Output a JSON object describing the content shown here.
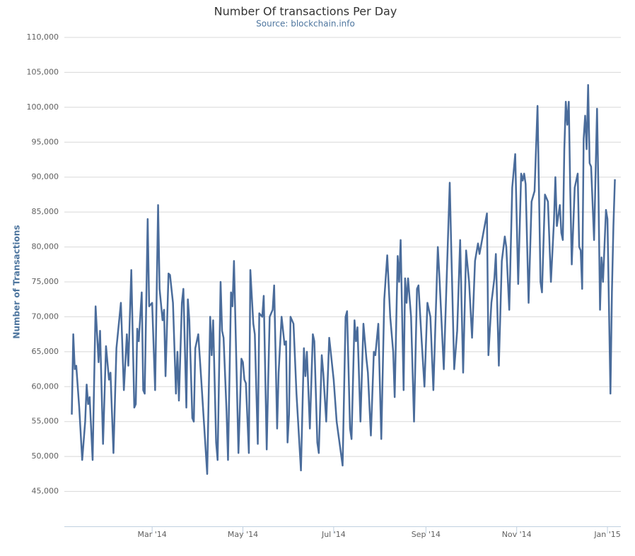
{
  "chart_data": {
    "type": "line",
    "title": "Number Of transactions Per Day",
    "subtitle": "Source: blockchain.info",
    "y_label": "Number of Transactions",
    "color": "#4a6c9b",
    "grid": true,
    "xlim": [
      0,
      374
    ],
    "xticks": [
      {
        "value": 59,
        "label": "Mar '14"
      },
      {
        "value": 120,
        "label": "May '14"
      },
      {
        "value": 181,
        "label": "Jul '14"
      },
      {
        "value": 243,
        "label": "Sep '14"
      },
      {
        "value": 304,
        "label": "Nov '14"
      },
      {
        "value": 365,
        "label": "Jan '15"
      }
    ],
    "ylim": [
      40000,
      110000
    ],
    "yticks": [
      {
        "value": 45000,
        "label": "45,000"
      },
      {
        "value": 50000,
        "label": "50,000"
      },
      {
        "value": 55000,
        "label": "55,000"
      },
      {
        "value": 60000,
        "label": "60,000"
      },
      {
        "value": 65000,
        "label": "65,000"
      },
      {
        "value": 70000,
        "label": "70,000"
      },
      {
        "value": 75000,
        "label": "75,000"
      },
      {
        "value": 80000,
        "label": "80,000"
      },
      {
        "value": 85000,
        "label": "85,000"
      },
      {
        "value": 90000,
        "label": "90,000"
      },
      {
        "value": 95000,
        "label": "95,000"
      },
      {
        "value": 100000,
        "label": "100,000"
      },
      {
        "value": 105000,
        "label": "105,000"
      },
      {
        "value": 110000,
        "label": "110,000"
      }
    ],
    "x": [
      5,
      6,
      7,
      8,
      10,
      12,
      14,
      15,
      16,
      17,
      19,
      21,
      23,
      24,
      26,
      28,
      30,
      31,
      33,
      35,
      38,
      40,
      42,
      43,
      45,
      47,
      48,
      49,
      50,
      52,
      53,
      54,
      56,
      57,
      59,
      61,
      63,
      64,
      66,
      67,
      68,
      70,
      71,
      73,
      75,
      76,
      77,
      79,
      80,
      82,
      83,
      84,
      86,
      87,
      88,
      90,
      92,
      96,
      98,
      99,
      100,
      102,
      103,
      105,
      106,
      107,
      109,
      110,
      112,
      113,
      114,
      115,
      117,
      119,
      120,
      121,
      122,
      124,
      125,
      127,
      128,
      130,
      131,
      133,
      134,
      136,
      137,
      138,
      140,
      141,
      143,
      144,
      146,
      148,
      149,
      150,
      151,
      152,
      154,
      156,
      159,
      161,
      162,
      163,
      165,
      167,
      168,
      170,
      171,
      173,
      174,
      176,
      178,
      179,
      181,
      183,
      187,
      189,
      190,
      192,
      193,
      195,
      196,
      197,
      199,
      201,
      203,
      204,
      206,
      208,
      209,
      211,
      213,
      215,
      217,
      219,
      221,
      222,
      224,
      225,
      226,
      228,
      229,
      230,
      231,
      233,
      235,
      237,
      238,
      240,
      242,
      244,
      246,
      248,
      251,
      252,
      255,
      259,
      260,
      262,
      264,
      266,
      268,
      270,
      272,
      274,
      276,
      278,
      279,
      284,
      285,
      287,
      289,
      290,
      292,
      294,
      296,
      297,
      299,
      301,
      303,
      305,
      307,
      308,
      309,
      310,
      312,
      314,
      316,
      318,
      320,
      321,
      323,
      324,
      325,
      327,
      329,
      330,
      331,
      333,
      334,
      335,
      336,
      337,
      338,
      339,
      340,
      341,
      343,
      345,
      346,
      347,
      348,
      349,
      350,
      351,
      352,
      353,
      354,
      356,
      358,
      359,
      360,
      361,
      362,
      364,
      365,
      367,
      368,
      369,
      370
    ],
    "values": [
      56000,
      67500,
      62500,
      63000,
      57000,
      49500,
      55000,
      60300,
      57500,
      58500,
      49500,
      71500,
      63500,
      68000,
      51800,
      65800,
      61000,
      62000,
      50500,
      65500,
      72000,
      59500,
      67500,
      63000,
      76700,
      57000,
      57500,
      68300,
      66500,
      73500,
      59500,
      59000,
      84000,
      71500,
      72000,
      59500,
      86000,
      74000,
      69500,
      71000,
      61500,
      76200,
      76000,
      72000,
      59000,
      65000,
      58000,
      72000,
      74000,
      57000,
      72500,
      69500,
      55500,
      55000,
      65500,
      67500,
      61000,
      47500,
      70000,
      64500,
      69500,
      52000,
      49500,
      75000,
      68000,
      67000,
      56500,
      49500,
      73500,
      71500,
      78000,
      69000,
      50500,
      64000,
      63500,
      61000,
      60500,
      50500,
      76700,
      69000,
      67500,
      51800,
      70500,
      70000,
      73000,
      51000,
      61000,
      70000,
      71000,
      74500,
      54000,
      62000,
      70000,
      66000,
      66500,
      52000,
      56000,
      70000,
      69000,
      59000,
      48000,
      65500,
      61500,
      65000,
      54000,
      67500,
      66500,
      52000,
      50500,
      64500,
      62000,
      55000,
      67000,
      65000,
      61000,
      55000,
      48700,
      70000,
      70800,
      54000,
      52500,
      69500,
      66500,
      68500,
      55000,
      69000,
      64000,
      62000,
      53000,
      65000,
      64500,
      69000,
      52500,
      72500,
      78800,
      70000,
      65000,
      58500,
      78700,
      75000,
      81000,
      59500,
      75500,
      72000,
      75500,
      70000,
      55000,
      74000,
      74500,
      67000,
      60000,
      72000,
      70000,
      59500,
      80000,
      76000,
      62500,
      89200,
      80000,
      62500,
      68000,
      81000,
      62000,
      79500,
      75000,
      67000,
      78000,
      80500,
      79000,
      84800,
      64500,
      72000,
      75500,
      79000,
      63000,
      78000,
      81500,
      80000,
      71000,
      88500,
      93300,
      74700,
      90500,
      89500,
      90500,
      89000,
      72000,
      86500,
      88000,
      100200,
      75000,
      73500,
      87500,
      87000,
      86500,
      75000,
      83500,
      90000,
      83000,
      86000,
      82000,
      81000,
      94000,
      100800,
      97500,
      100800,
      88000,
      77500,
      88500,
      90500,
      80000,
      79500,
      74000,
      95500,
      98800,
      94000,
      103200,
      92000,
      91500,
      81000,
      99800,
      87000,
      71000,
      78500,
      75000,
      85300,
      84000,
      59000,
      73500,
      83000,
      89700
    ]
  }
}
